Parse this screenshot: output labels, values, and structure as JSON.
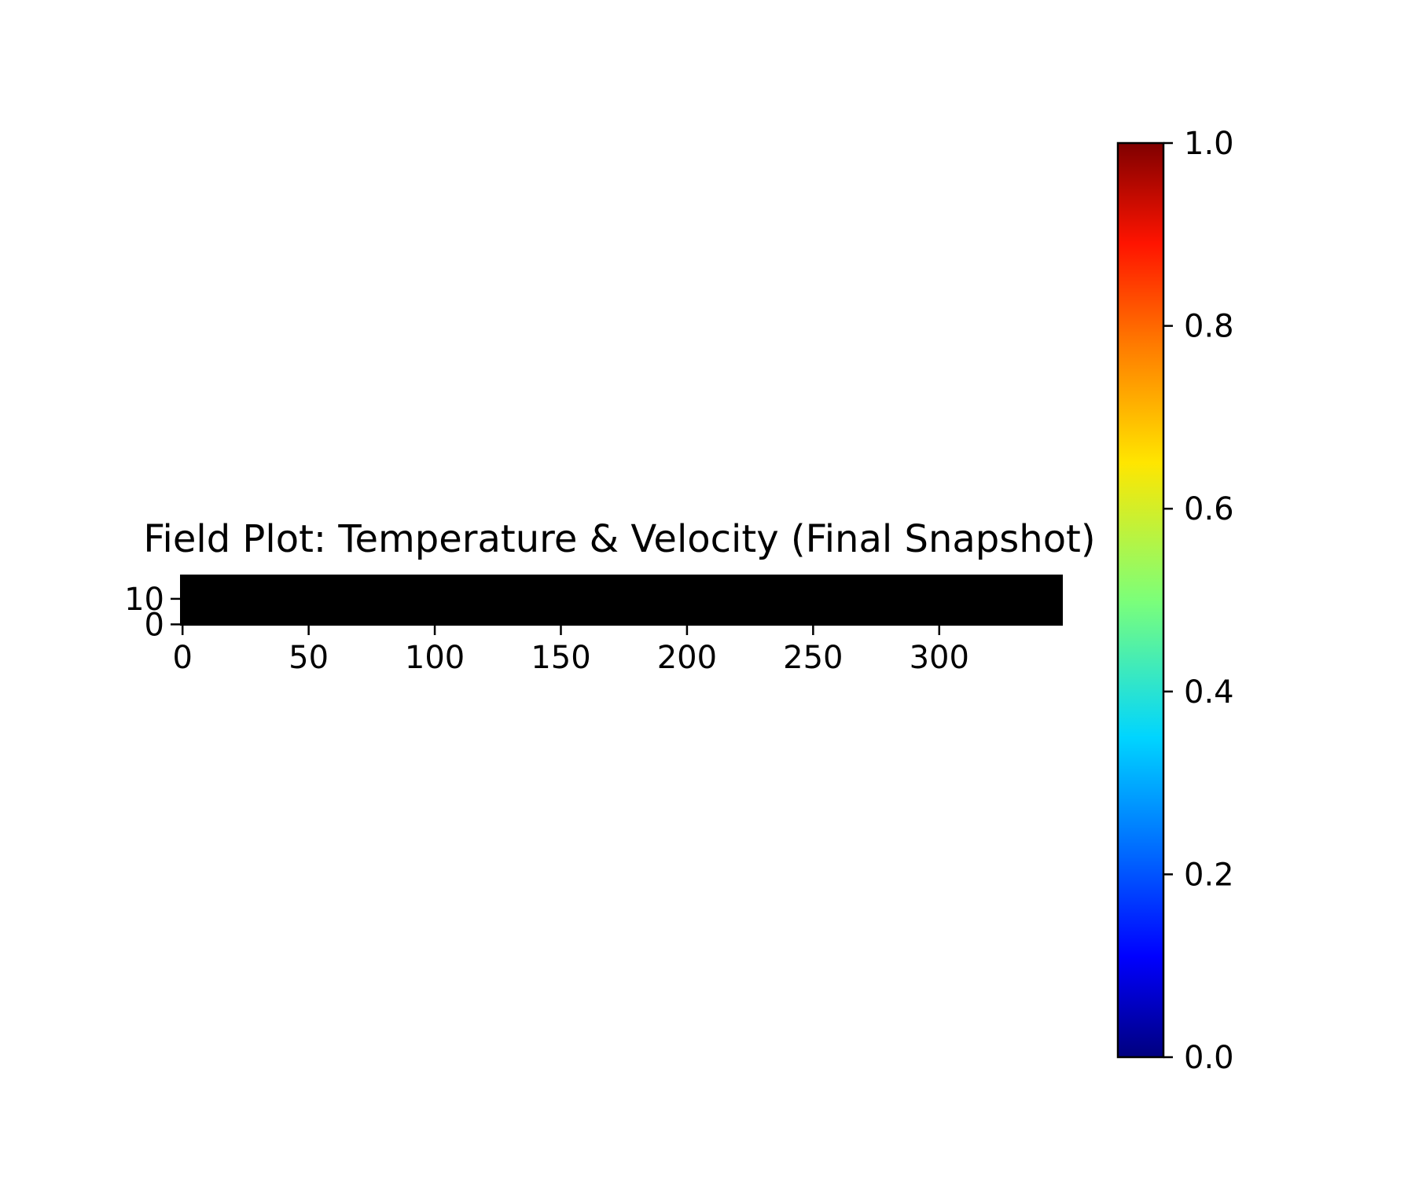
{
  "chart_data": {
    "type": "heatmap",
    "title": "Field Plot: Temperature & Velocity (Final Snapshot)",
    "xlabel": "",
    "ylabel": "",
    "xlim": [
      -1,
      349
    ],
    "ylim": [
      -0.5,
      19.5
    ],
    "x_ticks": [
      0,
      50,
      100,
      150,
      200,
      250,
      300
    ],
    "x_tick_labels": [
      "0",
      "50",
      "100",
      "150",
      "200",
      "250",
      "300"
    ],
    "y_ticks": [
      0,
      10
    ],
    "y_tick_labels": [
      "0",
      "10"
    ],
    "field": {
      "cols": 350,
      "rows": 20,
      "fill_color": "#000000"
    },
    "colorbar": {
      "colormap": "jet",
      "vmin": 0.0,
      "vmax": 1.0,
      "ticks": [
        0.0,
        0.2,
        0.4,
        0.6,
        0.8,
        1.0
      ],
      "tick_labels": [
        "0.0",
        "0.2",
        "0.4",
        "0.6",
        "0.8",
        "1.0"
      ],
      "placement": "right"
    },
    "grid": false
  }
}
